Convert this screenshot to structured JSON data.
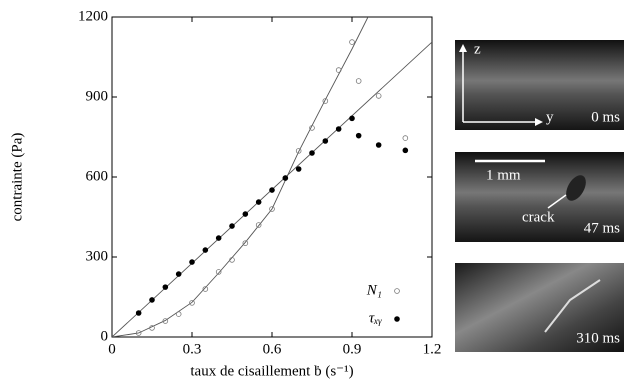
{
  "chart_data": {
    "type": "scatter",
    "xlabel": "taux de cisaillement ḃ (s⁻¹)",
    "ylabel": "contrainte (Pa)",
    "xlim": [
      0,
      1.2
    ],
    "ylim": [
      0,
      1200
    ],
    "xticks": [
      0,
      0.3,
      0.6,
      0.9,
      1.2
    ],
    "yticks": [
      0,
      300,
      600,
      900,
      1200
    ],
    "legend": "lower right",
    "x": [
      0.1,
      0.15,
      0.2,
      0.25,
      0.3,
      0.35,
      0.4,
      0.45,
      0.5,
      0.55,
      0.6,
      0.65,
      0.7,
      0.75,
      0.8,
      0.85,
      0.9,
      0.925,
      1.0,
      1.1
    ],
    "series": [
      {
        "name": "N₁",
        "color": "#777777",
        "marker": "open",
        "values": [
          15,
          34,
          60,
          86,
          128,
          180,
          244,
          289,
          352,
          420,
          480,
          596,
          698,
          784,
          885,
          1001,
          1106,
          960,
          904,
          746
        ]
      },
      {
        "name": "τₓᵧ",
        "color": "#000000",
        "marker": "filled",
        "values": [
          90,
          139,
          187,
          236,
          281,
          326,
          371,
          416,
          461,
          506,
          551,
          596,
          630,
          690,
          735,
          780,
          820,
          755,
          720,
          700
        ]
      }
    ],
    "fits": [
      {
        "color": "#555555",
        "x": [
          0,
          0.1,
          0.2,
          0.3,
          0.4,
          0.5,
          0.6,
          0.7,
          0.8,
          0.9,
          0.96
        ],
        "values": [
          0,
          15,
          62,
          130,
          240,
          355,
          480,
          695,
          890,
          1080,
          1200
        ]
      },
      {
        "color": "#555555",
        "x": [
          0,
          1.2
        ],
        "values": [
          0,
          1106
        ]
      }
    ]
  },
  "photos": [
    {
      "axis_z": "z",
      "axis_y": "y",
      "time": "0 ms"
    },
    {
      "scale": "1 mm",
      "annotation": "crack",
      "time": "47 ms"
    },
    {
      "time": "310 ms"
    }
  ]
}
